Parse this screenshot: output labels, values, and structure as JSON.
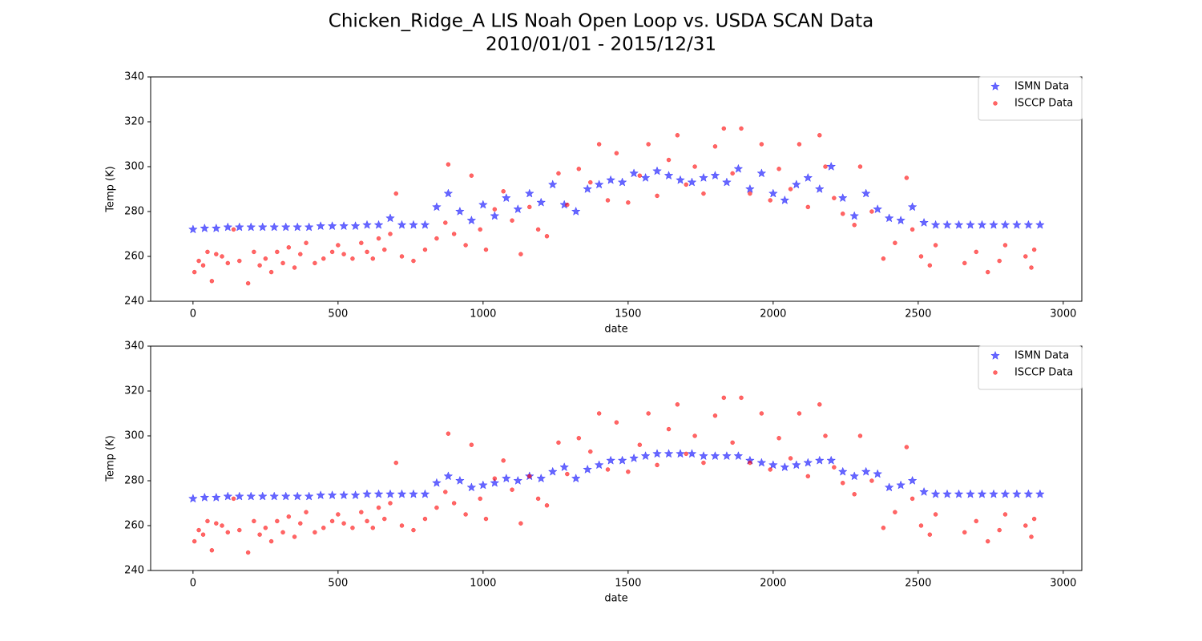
{
  "figure": {
    "title": "Chicken_Ridge_A LIS Noah Open Loop vs. USDA SCAN Data",
    "subtitle": "2010/01/01 - 2015/12/31"
  },
  "chart_data": [
    {
      "type": "scatter",
      "xlabel": "date",
      "ylabel": "Temp (K)",
      "xlim": [
        -146,
        3064
      ],
      "ylim": [
        240,
        340
      ],
      "xticks": [
        0,
        500,
        1000,
        1500,
        2000,
        2500,
        3000
      ],
      "yticks": [
        240,
        260,
        280,
        300,
        320,
        340
      ],
      "legend": "upper right",
      "series": [
        {
          "name": "ISMN Data",
          "color": "#0000ff",
          "marker": "star",
          "x": [
            0,
            40,
            80,
            120,
            160,
            200,
            240,
            280,
            320,
            360,
            400,
            440,
            480,
            520,
            560,
            600,
            640,
            680,
            720,
            760,
            800,
            840,
            880,
            920,
            960,
            1000,
            1040,
            1080,
            1120,
            1160,
            1200,
            1240,
            1280,
            1320,
            1360,
            1400,
            1440,
            1480,
            1520,
            1560,
            1600,
            1640,
            1680,
            1720,
            1760,
            1800,
            1840,
            1880,
            1920,
            1960,
            2000,
            2040,
            2080,
            2120,
            2160,
            2200,
            2240,
            2280,
            2320,
            2360,
            2400,
            2440,
            2480,
            2520,
            2560,
            2600,
            2640,
            2680,
            2720,
            2760,
            2800,
            2840,
            2880,
            2920
          ],
          "values": [
            272,
            272.5,
            272.5,
            273,
            273,
            273,
            273,
            273,
            273,
            273,
            273,
            273.5,
            273.5,
            273.5,
            273.5,
            274,
            274,
            277,
            274,
            274,
            274,
            282,
            288,
            280,
            276,
            283,
            278,
            286,
            281,
            288,
            284,
            292,
            283,
            280,
            290,
            292,
            294,
            293,
            297,
            295,
            298,
            296,
            294,
            293,
            295,
            296,
            293,
            299,
            290,
            297,
            288,
            285,
            292,
            295,
            290,
            300,
            286,
            278,
            288,
            281,
            277,
            276,
            282,
            275,
            274,
            274,
            274,
            274,
            274,
            274,
            274,
            274,
            274,
            274
          ]
        },
        {
          "name": "ISCCP Data",
          "color": "#ff0000",
          "marker": "circle",
          "x": [
            5,
            20,
            35,
            50,
            65,
            80,
            100,
            120,
            140,
            160,
            190,
            210,
            230,
            250,
            270,
            290,
            310,
            330,
            350,
            370,
            390,
            420,
            450,
            480,
            500,
            520,
            550,
            580,
            600,
            620,
            640,
            660,
            680,
            700,
            720,
            760,
            800,
            840,
            870,
            880,
            900,
            940,
            960,
            990,
            1010,
            1040,
            1070,
            1100,
            1130,
            1160,
            1190,
            1220,
            1260,
            1290,
            1330,
            1370,
            1400,
            1430,
            1460,
            1500,
            1540,
            1570,
            1600,
            1640,
            1670,
            1700,
            1730,
            1760,
            1800,
            1830,
            1860,
            1890,
            1920,
            1960,
            1990,
            2020,
            2060,
            2090,
            2120,
            2160,
            2180,
            2210,
            2240,
            2280,
            2300,
            2340,
            2380,
            2420,
            2460,
            2480,
            2510,
            2540,
            2560,
            2660,
            2700,
            2740,
            2780,
            2800,
            2870,
            2890,
            2900
          ],
          "values": [
            253,
            258,
            256,
            262,
            249,
            261,
            260,
            257,
            272,
            258,
            248,
            262,
            256,
            259,
            253,
            262,
            257,
            264,
            255,
            261,
            266,
            257,
            259,
            262,
            265,
            261,
            259,
            266,
            262,
            259,
            268,
            263,
            270,
            288,
            260,
            258,
            263,
            268,
            275,
            301,
            270,
            265,
            296,
            272,
            263,
            281,
            289,
            276,
            261,
            282,
            272,
            269,
            297,
            283,
            299,
            293,
            310,
            285,
            306,
            284,
            296,
            310,
            287,
            303,
            314,
            292,
            300,
            288,
            309,
            317,
            297,
            317,
            288,
            310,
            285,
            299,
            290,
            310,
            282,
            314,
            300,
            286,
            279,
            274,
            300,
            280,
            259,
            266,
            295,
            272,
            260,
            256,
            265,
            257,
            262,
            253,
            258,
            265,
            260,
            255,
            263
          ]
        }
      ]
    },
    {
      "type": "scatter",
      "xlabel": "date",
      "ylabel": "Temp (K)",
      "xlim": [
        -146,
        3064
      ],
      "ylim": [
        240,
        340
      ],
      "xticks": [
        0,
        500,
        1000,
        1500,
        2000,
        2500,
        3000
      ],
      "yticks": [
        240,
        260,
        280,
        300,
        320,
        340
      ],
      "legend": "upper right",
      "series": [
        {
          "name": "ISMN Data",
          "color": "#0000ff",
          "marker": "star",
          "x": [
            0,
            40,
            80,
            120,
            160,
            200,
            240,
            280,
            320,
            360,
            400,
            440,
            480,
            520,
            560,
            600,
            640,
            680,
            720,
            760,
            800,
            840,
            880,
            920,
            960,
            1000,
            1040,
            1080,
            1120,
            1160,
            1200,
            1240,
            1280,
            1320,
            1360,
            1400,
            1440,
            1480,
            1520,
            1560,
            1600,
            1640,
            1680,
            1720,
            1760,
            1800,
            1840,
            1880,
            1920,
            1960,
            2000,
            2040,
            2080,
            2120,
            2160,
            2200,
            2240,
            2280,
            2320,
            2360,
            2400,
            2440,
            2480,
            2520,
            2560,
            2600,
            2640,
            2680,
            2720,
            2760,
            2800,
            2840,
            2880,
            2920
          ],
          "values": [
            272,
            272.5,
            272.5,
            273,
            273,
            273,
            273,
            273,
            273,
            273,
            273,
            273.5,
            273.5,
            273.5,
            273.5,
            274,
            274,
            274,
            274,
            274,
            274,
            279,
            282,
            280,
            277,
            278,
            279,
            281,
            280,
            282,
            281,
            284,
            286,
            281,
            285,
            287,
            289,
            289,
            290,
            291,
            292,
            292,
            292,
            292,
            291,
            291,
            291,
            291,
            289,
            288,
            287,
            286,
            287,
            288,
            289,
            289,
            284,
            282,
            284,
            283,
            277,
            278,
            280,
            275,
            274,
            274,
            274,
            274,
            274,
            274,
            274,
            274,
            274,
            274
          ]
        },
        {
          "name": "ISCCP Data",
          "color": "#ff0000",
          "marker": "circle",
          "x": [
            5,
            20,
            35,
            50,
            65,
            80,
            100,
            120,
            140,
            160,
            190,
            210,
            230,
            250,
            270,
            290,
            310,
            330,
            350,
            370,
            390,
            420,
            450,
            480,
            500,
            520,
            550,
            580,
            600,
            620,
            640,
            660,
            680,
            700,
            720,
            760,
            800,
            840,
            870,
            880,
            900,
            940,
            960,
            990,
            1010,
            1040,
            1070,
            1100,
            1130,
            1160,
            1190,
            1220,
            1260,
            1290,
            1330,
            1370,
            1400,
            1430,
            1460,
            1500,
            1540,
            1570,
            1600,
            1640,
            1670,
            1700,
            1730,
            1760,
            1800,
            1830,
            1860,
            1890,
            1920,
            1960,
            1990,
            2020,
            2060,
            2090,
            2120,
            2160,
            2180,
            2210,
            2240,
            2280,
            2300,
            2340,
            2380,
            2420,
            2460,
            2480,
            2510,
            2540,
            2560,
            2660,
            2700,
            2740,
            2780,
            2800,
            2870,
            2890,
            2900
          ],
          "values": [
            253,
            258,
            256,
            262,
            249,
            261,
            260,
            257,
            272,
            258,
            248,
            262,
            256,
            259,
            253,
            262,
            257,
            264,
            255,
            261,
            266,
            257,
            259,
            262,
            265,
            261,
            259,
            266,
            262,
            259,
            268,
            263,
            270,
            288,
            260,
            258,
            263,
            268,
            275,
            301,
            270,
            265,
            296,
            272,
            263,
            281,
            289,
            276,
            261,
            282,
            272,
            269,
            297,
            283,
            299,
            293,
            310,
            285,
            306,
            284,
            296,
            310,
            287,
            303,
            314,
            292,
            300,
            288,
            309,
            317,
            297,
            317,
            288,
            310,
            285,
            299,
            290,
            310,
            282,
            314,
            300,
            286,
            279,
            274,
            300,
            280,
            259,
            266,
            295,
            272,
            260,
            256,
            265,
            257,
            262,
            253,
            258,
            265,
            260,
            255,
            263
          ]
        }
      ]
    }
  ]
}
